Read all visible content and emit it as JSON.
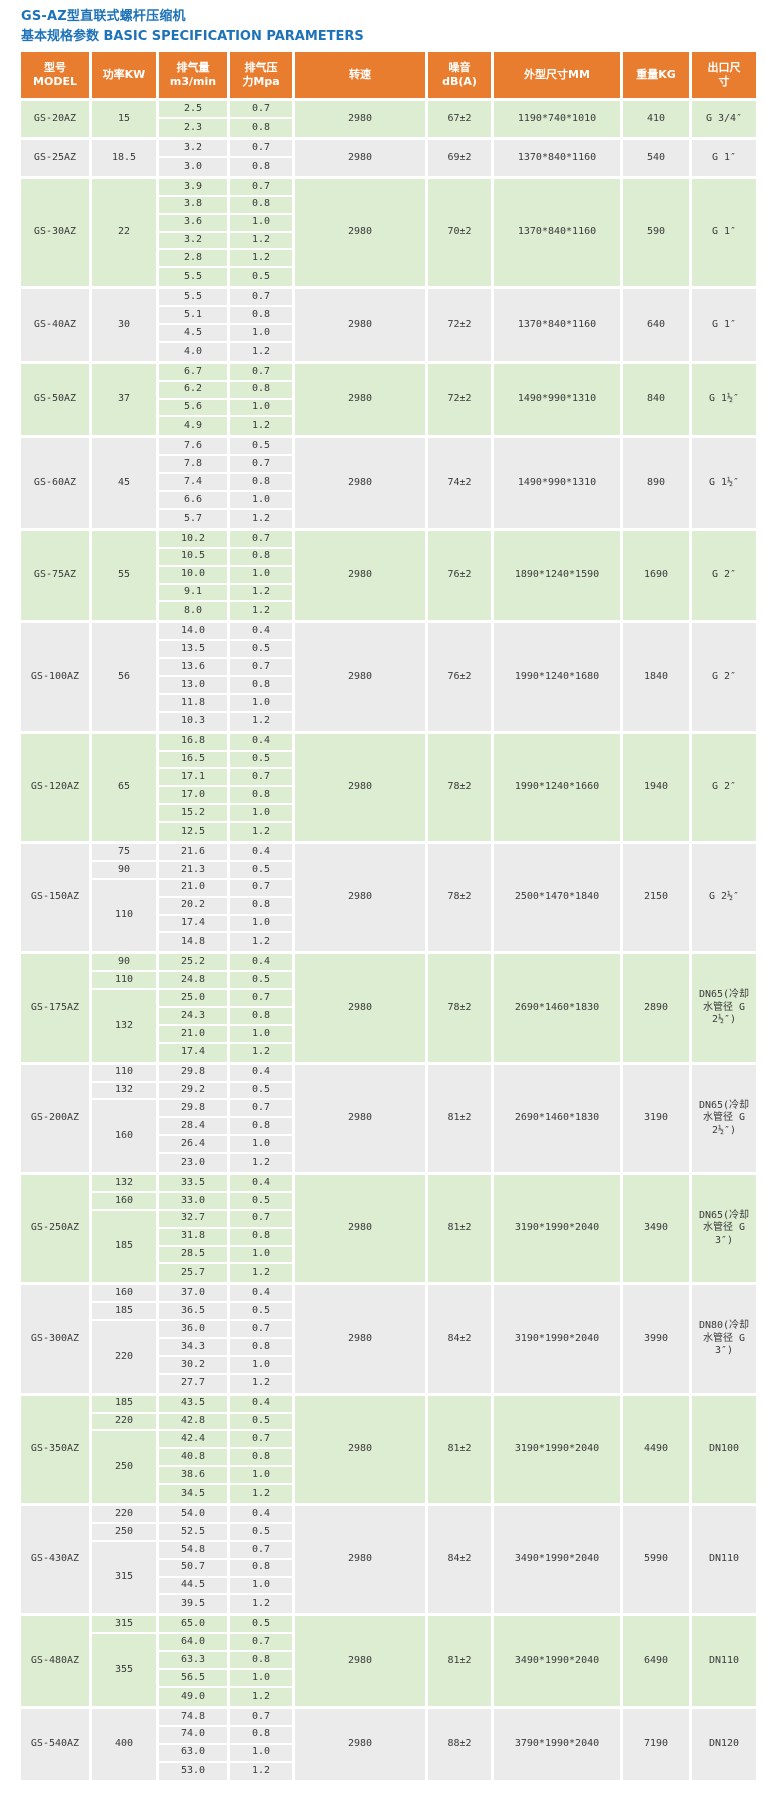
{
  "title": "GS-AZ型直联式螺杆压缩机",
  "subtitle": "基本规格参数 BASIC SPECIFICATION PARAMETERS",
  "colors": {
    "header_bg": "#e97d2f",
    "row_green": "#ddedd2",
    "row_gray": "#ebebeb",
    "title_blue": "#1e73b8",
    "cell_text": "#3a3a3a"
  },
  "table": {
    "columns": [
      {
        "key": "model",
        "label": "型号\nMODEL"
      },
      {
        "key": "power",
        "label": "功率KW"
      },
      {
        "key": "flow",
        "label": "排气量\nm3/min"
      },
      {
        "key": "pressure",
        "label": "排气压\n力Mpa"
      },
      {
        "key": "speed",
        "label": "转速"
      },
      {
        "key": "noise",
        "label": "噪音\ndB(A)"
      },
      {
        "key": "dims",
        "label": "外型尺寸MM"
      },
      {
        "key": "weight",
        "label": "重量KG"
      },
      {
        "key": "outlet",
        "label": "出口尺\n寸"
      }
    ],
    "blocks": [
      {
        "model": "GS-20AZ",
        "groups": [
          {
            "power": "15",
            "rows": [
              [
                "2.5",
                "0.7"
              ],
              [
                "2.3",
                "0.8"
              ]
            ]
          }
        ],
        "speed": "2980",
        "noise": "67±2",
        "dims": "1190*740*1010",
        "weight": "410",
        "outlet": "G 3/4″"
      },
      {
        "model": "GS-25AZ",
        "groups": [
          {
            "power": "18.5",
            "rows": [
              [
                "3.2",
                "0.7"
              ],
              [
                "3.0",
                "0.8"
              ]
            ]
          }
        ],
        "speed": "2980",
        "noise": "69±2",
        "dims": "1370*840*1160",
        "weight": "540",
        "outlet": "G 1″"
      },
      {
        "model": "GS-30AZ",
        "groups": [
          {
            "power": "22",
            "rows": [
              [
                "3.9",
                "0.7"
              ],
              [
                "3.8",
                "0.8"
              ],
              [
                "3.6",
                "1.0"
              ],
              [
                "3.2",
                "1.2"
              ],
              [
                "2.8",
                "1.2"
              ],
              [
                "5.5",
                "0.5"
              ]
            ]
          }
        ],
        "speed": "2980",
        "noise": "70±2",
        "dims": "1370*840*1160",
        "weight": "590",
        "outlet": "G 1″"
      },
      {
        "model": "GS-40AZ",
        "groups": [
          {
            "power": "30",
            "rows": [
              [
                "5.5",
                "0.7"
              ],
              [
                "5.1",
                "0.8"
              ],
              [
                "4.5",
                "1.0"
              ],
              [
                "4.0",
                "1.2"
              ]
            ]
          }
        ],
        "speed": "2980",
        "noise": "72±2",
        "dims": "1370*840*1160",
        "weight": "640",
        "outlet": "G 1″"
      },
      {
        "model": "GS-50AZ",
        "groups": [
          {
            "power": "37",
            "rows": [
              [
                "6.7",
                "0.7"
              ],
              [
                "6.2",
                "0.8"
              ],
              [
                "5.6",
                "1.0"
              ],
              [
                "4.9",
                "1.2"
              ]
            ]
          }
        ],
        "speed": "2980",
        "noise": "72±2",
        "dims": "1490*990*1310",
        "weight": "840",
        "outlet": "G 1½″"
      },
      {
        "model": "GS-60AZ",
        "groups": [
          {
            "power": "45",
            "rows": [
              [
                "7.6",
                "0.5"
              ],
              [
                "7.8",
                "0.7"
              ],
              [
                "7.4",
                "0.8"
              ],
              [
                "6.6",
                "1.0"
              ],
              [
                "5.7",
                "1.2"
              ]
            ]
          }
        ],
        "speed": "2980",
        "noise": "74±2",
        "dims": "1490*990*1310",
        "weight": "890",
        "outlet": "G 1½″"
      },
      {
        "model": "GS-75AZ",
        "groups": [
          {
            "power": "55",
            "rows": [
              [
                "10.2",
                "0.7"
              ],
              [
                "10.5",
                "0.8"
              ],
              [
                "10.0",
                "1.0"
              ],
              [
                "9.1",
                "1.2"
              ],
              [
                "8.0",
                "1.2"
              ]
            ]
          }
        ],
        "speed": "2980",
        "noise": "76±2",
        "dims": "1890*1240*1590",
        "weight": "1690",
        "outlet": "G 2″"
      },
      {
        "model": "GS-100AZ",
        "groups": [
          {
            "power": "56",
            "rows": [
              [
                "14.0",
                "0.4"
              ],
              [
                "13.5",
                "0.5"
              ],
              [
                "13.6",
                "0.7"
              ],
              [
                "13.0",
                "0.8"
              ],
              [
                "11.8",
                "1.0"
              ],
              [
                "10.3",
                "1.2"
              ]
            ]
          }
        ],
        "speed": "2980",
        "noise": "76±2",
        "dims": "1990*1240*1680",
        "weight": "1840",
        "outlet": "G 2″"
      },
      {
        "model": "GS-120AZ",
        "groups": [
          {
            "power": "65",
            "rows": [
              [
                "16.8",
                "0.4"
              ],
              [
                "16.5",
                "0.5"
              ],
              [
                "17.1",
                "0.7"
              ],
              [
                "17.0",
                "0.8"
              ],
              [
                "15.2",
                "1.0"
              ],
              [
                "12.5",
                "1.2"
              ]
            ]
          }
        ],
        "speed": "2980",
        "noise": "78±2",
        "dims": "1990*1240*1660",
        "weight": "1940",
        "outlet": "G 2″"
      },
      {
        "model": "GS-150AZ",
        "groups": [
          {
            "power": "75",
            "rows": [
              [
                "21.6",
                "0.4"
              ]
            ]
          },
          {
            "power": "90",
            "rows": [
              [
                "21.3",
                "0.5"
              ]
            ]
          },
          {
            "power": "110",
            "rows": [
              [
                "21.0",
                "0.7"
              ],
              [
                "20.2",
                "0.8"
              ],
              [
                "17.4",
                "1.0"
              ],
              [
                "14.8",
                "1.2"
              ]
            ]
          }
        ],
        "speed": "2980",
        "noise": "78±2",
        "dims": "2500*1470*1840",
        "weight": "2150",
        "outlet": "G 2½″"
      },
      {
        "model": "GS-175AZ",
        "groups": [
          {
            "power": "90",
            "rows": [
              [
                "25.2",
                "0.4"
              ]
            ]
          },
          {
            "power": "110",
            "rows": [
              [
                "24.8",
                "0.5"
              ]
            ]
          },
          {
            "power": "132",
            "rows": [
              [
                "25.0",
                "0.7"
              ],
              [
                "24.3",
                "0.8"
              ],
              [
                "21.0",
                "1.0"
              ],
              [
                "17.4",
                "1.2"
              ]
            ]
          }
        ],
        "speed": "2980",
        "noise": "78±2",
        "dims": "2690*1460*1830",
        "weight": "2890",
        "outlet": "DN65(冷却水管径 G 2½″)"
      },
      {
        "model": "GS-200AZ",
        "groups": [
          {
            "power": "110",
            "rows": [
              [
                "29.8",
                "0.4"
              ]
            ]
          },
          {
            "power": "132",
            "rows": [
              [
                "29.2",
                "0.5"
              ]
            ]
          },
          {
            "power": "160",
            "rows": [
              [
                "29.8",
                "0.7"
              ],
              [
                "28.4",
                "0.8"
              ],
              [
                "26.4",
                "1.0"
              ],
              [
                "23.0",
                "1.2"
              ]
            ]
          }
        ],
        "speed": "2980",
        "noise": "81±2",
        "dims": "2690*1460*1830",
        "weight": "3190",
        "outlet": "DN65(冷却水管径 G 2½″)"
      },
      {
        "model": "GS-250AZ",
        "groups": [
          {
            "power": "132",
            "rows": [
              [
                "33.5",
                "0.4"
              ]
            ]
          },
          {
            "power": "160",
            "rows": [
              [
                "33.0",
                "0.5"
              ]
            ]
          },
          {
            "power": "185",
            "rows": [
              [
                "32.7",
                "0.7"
              ],
              [
                "31.8",
                "0.8"
              ],
              [
                "28.5",
                "1.0"
              ],
              [
                "25.7",
                "1.2"
              ]
            ]
          }
        ],
        "speed": "2980",
        "noise": "81±2",
        "dims": "3190*1990*2040",
        "weight": "3490",
        "outlet": "DN65(冷却水管径 G 3″)"
      },
      {
        "model": "GS-300AZ",
        "groups": [
          {
            "power": "160",
            "rows": [
              [
                "37.0",
                "0.4"
              ]
            ]
          },
          {
            "power": "185",
            "rows": [
              [
                "36.5",
                "0.5"
              ]
            ]
          },
          {
            "power": "220",
            "rows": [
              [
                "36.0",
                "0.7"
              ],
              [
                "34.3",
                "0.8"
              ],
              [
                "30.2",
                "1.0"
              ],
              [
                "27.7",
                "1.2"
              ]
            ]
          }
        ],
        "speed": "2980",
        "noise": "84±2",
        "dims": "3190*1990*2040",
        "weight": "3990",
        "outlet": "DN80(冷却水管径 G 3″)"
      },
      {
        "model": "GS-350AZ",
        "groups": [
          {
            "power": "185",
            "rows": [
              [
                "43.5",
                "0.4"
              ]
            ]
          },
          {
            "power": "220",
            "rows": [
              [
                "42.8",
                "0.5"
              ]
            ]
          },
          {
            "power": "250",
            "rows": [
              [
                "42.4",
                "0.7"
              ],
              [
                "40.8",
                "0.8"
              ],
              [
                "38.6",
                "1.0"
              ],
              [
                "34.5",
                "1.2"
              ]
            ]
          }
        ],
        "speed": "2980",
        "noise": "81±2",
        "dims": "3190*1990*2040",
        "weight": "4490",
        "outlet": "DN100"
      },
      {
        "model": "GS-430AZ",
        "groups": [
          {
            "power": "220",
            "rows": [
              [
                "54.0",
                "0.4"
              ]
            ]
          },
          {
            "power": "250",
            "rows": [
              [
                "52.5",
                "0.5"
              ]
            ]
          },
          {
            "power": "315",
            "rows": [
              [
                "54.8",
                "0.7"
              ],
              [
                "50.7",
                "0.8"
              ],
              [
                "44.5",
                "1.0"
              ],
              [
                "39.5",
                "1.2"
              ]
            ]
          }
        ],
        "speed": "2980",
        "noise": "84±2",
        "dims": "3490*1990*2040",
        "weight": "5990",
        "outlet": "DN110"
      },
      {
        "model": "GS-480AZ",
        "groups": [
          {
            "power": "315",
            "rows": [
              [
                "65.0",
                "0.5"
              ]
            ]
          },
          {
            "power": "355",
            "rows": [
              [
                "64.0",
                "0.7"
              ],
              [
                "63.3",
                "0.8"
              ],
              [
                "56.5",
                "1.0"
              ],
              [
                "49.0",
                "1.2"
              ]
            ]
          }
        ],
        "speed": "2980",
        "noise": "81±2",
        "dims": "3490*1990*2040",
        "weight": "6490",
        "outlet": "DN110"
      },
      {
        "model": "GS-540AZ",
        "groups": [
          {
            "power": "400",
            "rows": [
              [
                "74.8",
                "0.7"
              ],
              [
                "74.0",
                "0.8"
              ],
              [
                "63.0",
                "1.0"
              ],
              [
                "53.0",
                "1.2"
              ]
            ]
          }
        ],
        "speed": "2980",
        "noise": "88±2",
        "dims": "3790*1990*2040",
        "weight": "7190",
        "outlet": "DN120"
      }
    ]
  }
}
